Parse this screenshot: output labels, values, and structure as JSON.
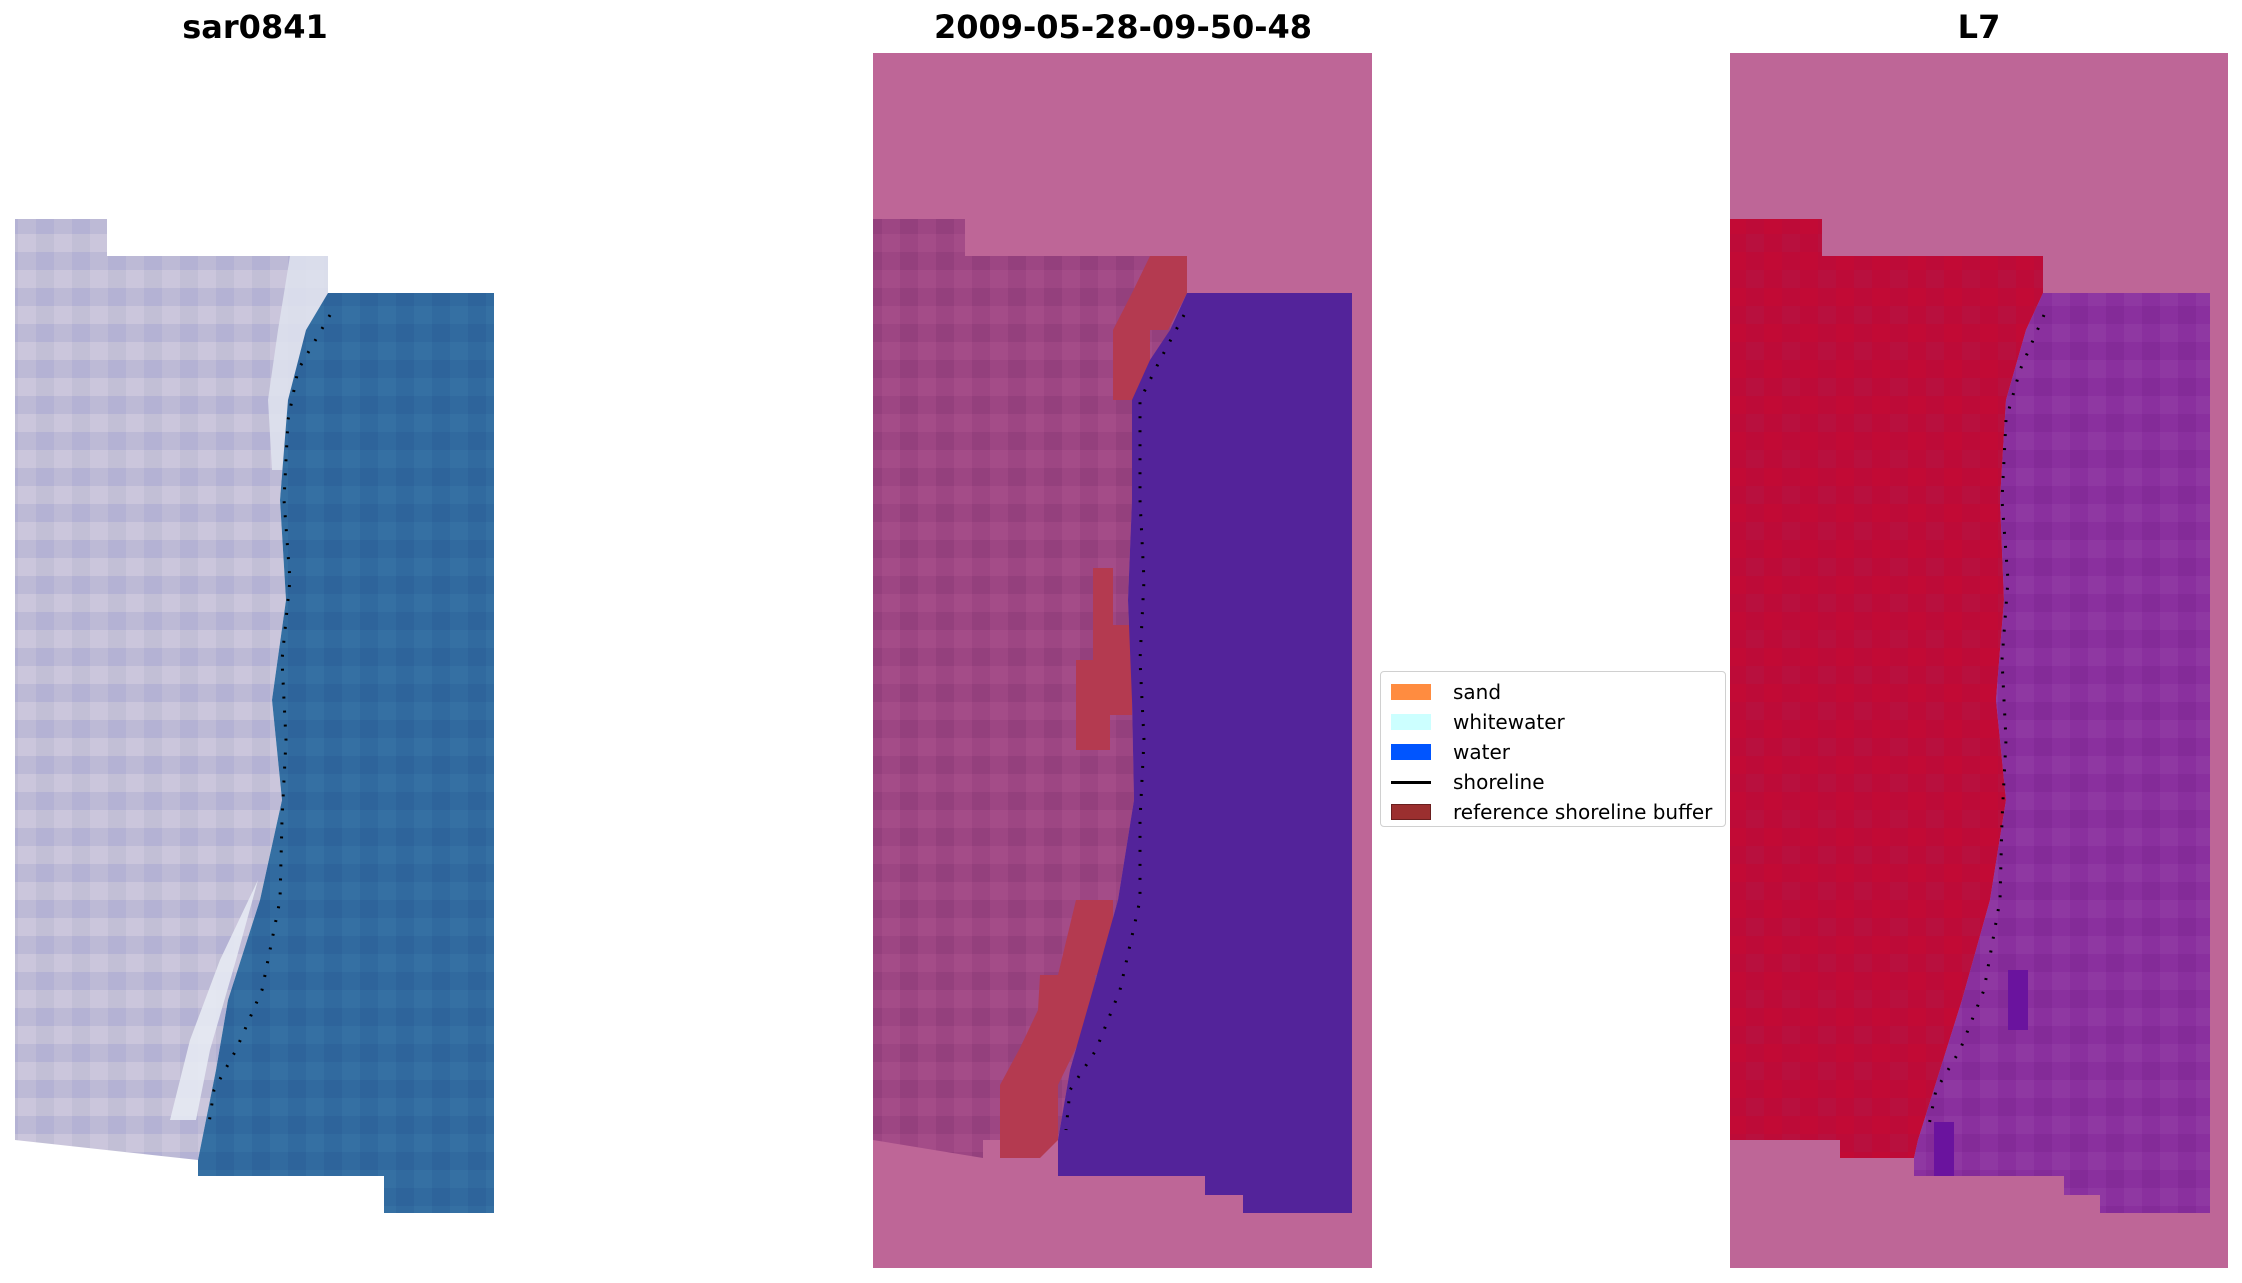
{
  "panels": [
    {
      "title": "sar0841"
    },
    {
      "title": "2009-05-28-09-50-48"
    },
    {
      "title": "L7"
    }
  ],
  "legend": {
    "items": [
      {
        "label": "sand",
        "kind": "patch",
        "color": "#ff8c40"
      },
      {
        "label": "whitewater",
        "kind": "patch",
        "color": "#ccffff"
      },
      {
        "label": "water",
        "kind": "patch",
        "color": "#0055ff"
      },
      {
        "label": "shoreline",
        "kind": "line",
        "color": "#000000"
      },
      {
        "label": "reference shoreline buffer",
        "kind": "patch",
        "color": "#9b2f2f"
      }
    ]
  },
  "colors": {
    "land_rgb": "#c0bcd8",
    "water_rgb": "#306aa0",
    "overlay_pink": "#be6697",
    "land_overlay": "#9c4580",
    "water_class": "#53239a",
    "buffer": "#b43a50",
    "land_index": "#bf0a38",
    "water_index": "#8a2f9d"
  }
}
